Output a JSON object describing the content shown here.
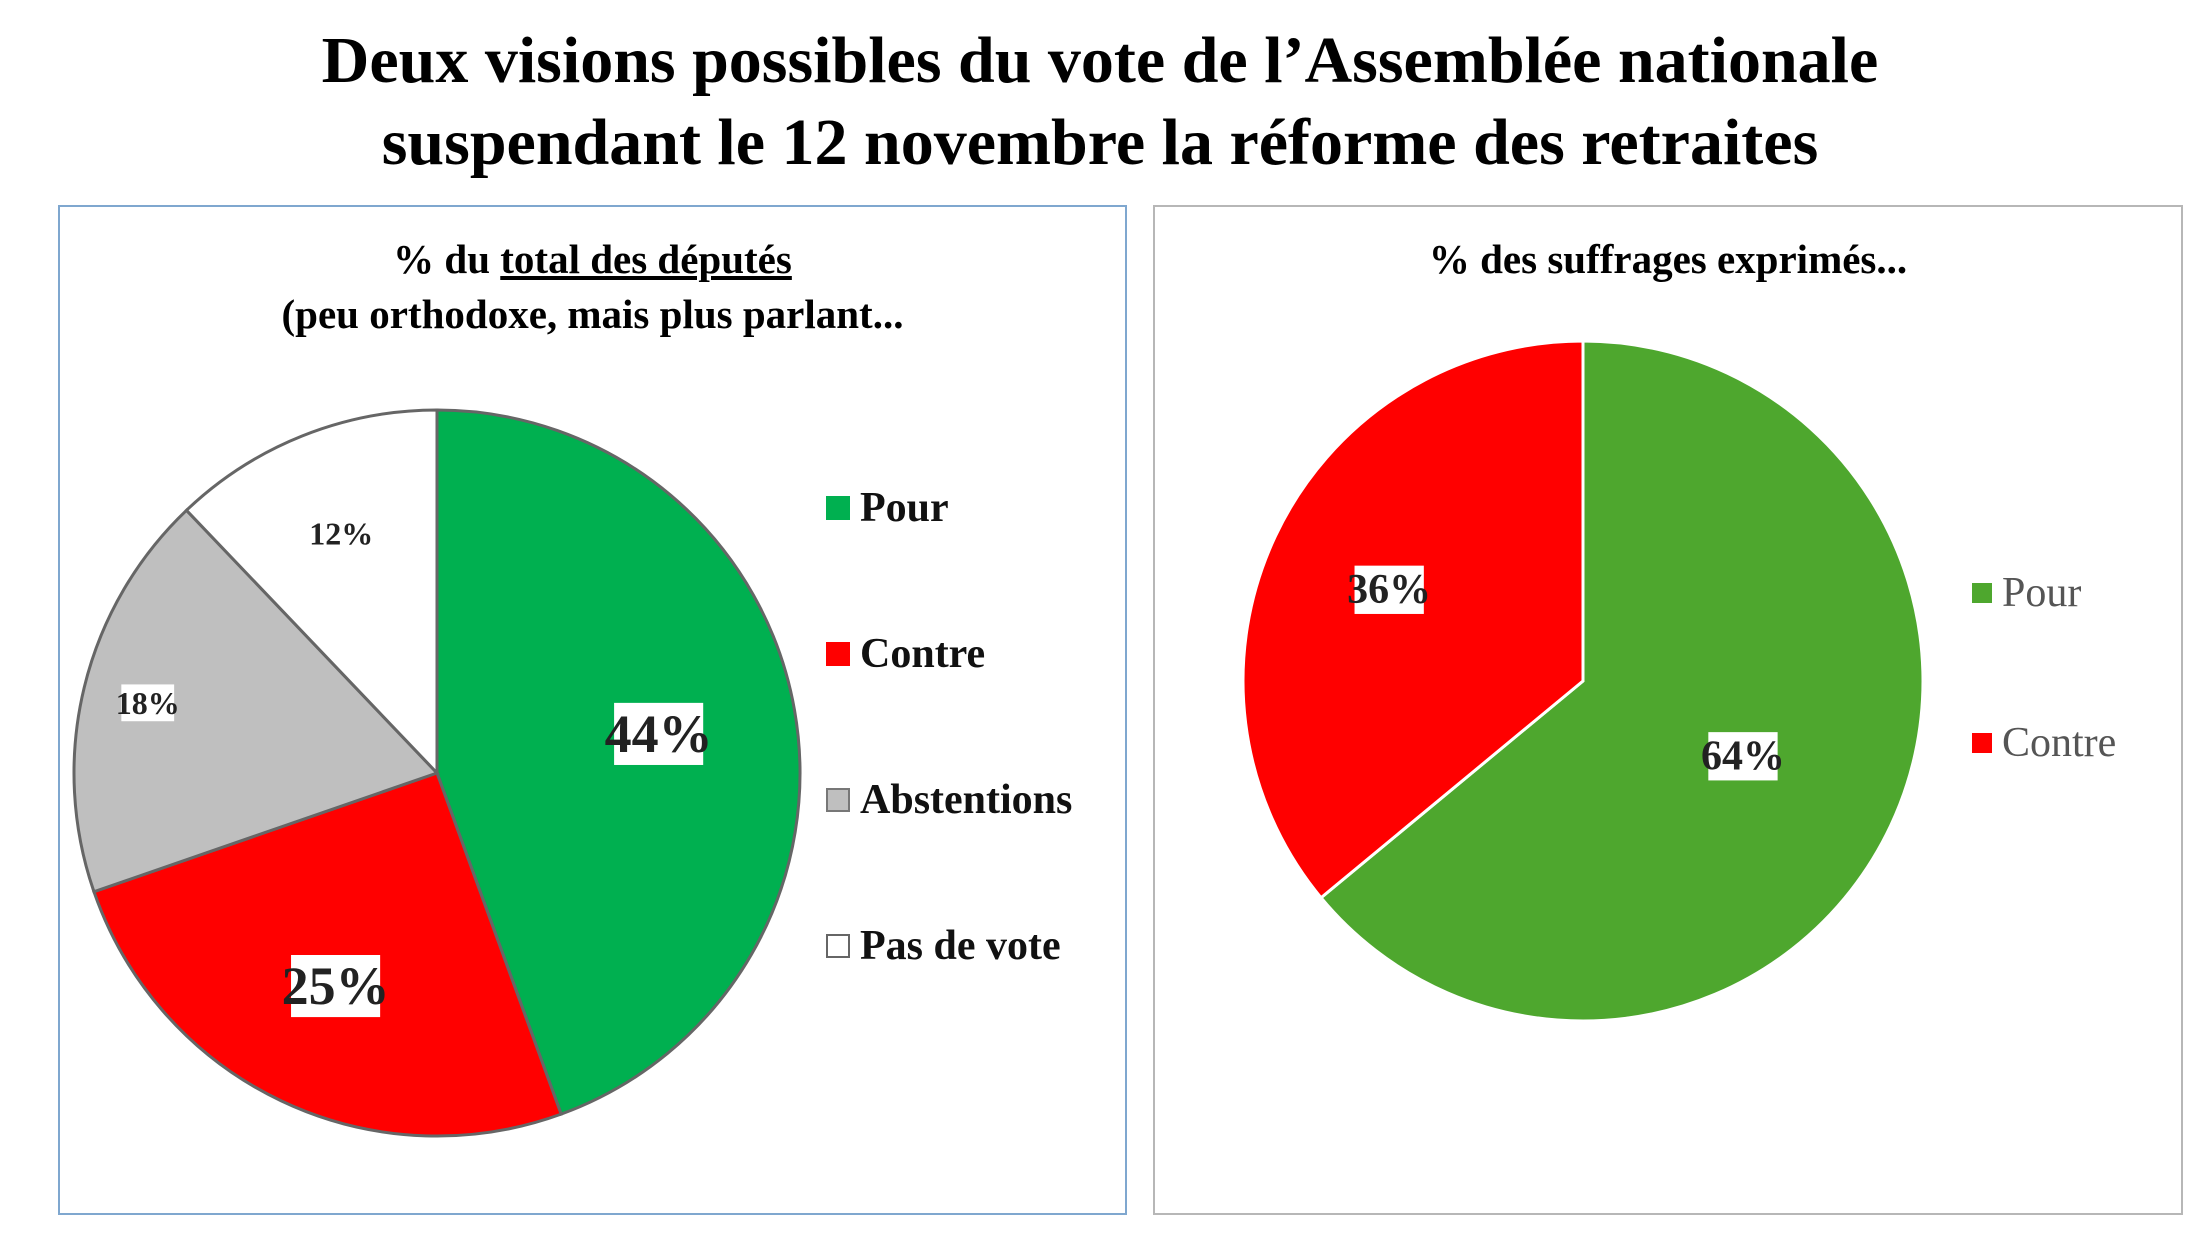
{
  "title_line1": "Deux visions possibles du vote de l’Assemblée nationale",
  "title_line2": "suspendant le 12 novembre la réforme des retraites",
  "colors": {
    "pour_left": "#00b050",
    "pour_right": "#4ea72e",
    "contre": "#ff0000",
    "abstentions": "#bfbfbf",
    "pas_de_vote": "#ffffff"
  },
  "chart_data": [
    {
      "type": "pie",
      "title_prefix": "% du ",
      "title_underlined": "total des députés",
      "subtitle": "(peu orthodoxe, mais plus parlant...",
      "legend_position": "right",
      "slices": [
        {
          "label": "Pour",
          "value": 44,
          "display": "44%"
        },
        {
          "label": "Contre",
          "value": 25,
          "display": "25%"
        },
        {
          "label": "Abstentions",
          "value": 18,
          "display": "18%"
        },
        {
          "label": "Pas de vote",
          "value": 12,
          "display": "12%"
        }
      ]
    },
    {
      "type": "pie",
      "title": "% des suffrages exprimés...",
      "legend_position": "right",
      "slices": [
        {
          "label": "Pour",
          "value": 64,
          "display": "64%"
        },
        {
          "label": "Contre",
          "value": 36,
          "display": "36%"
        }
      ]
    }
  ]
}
